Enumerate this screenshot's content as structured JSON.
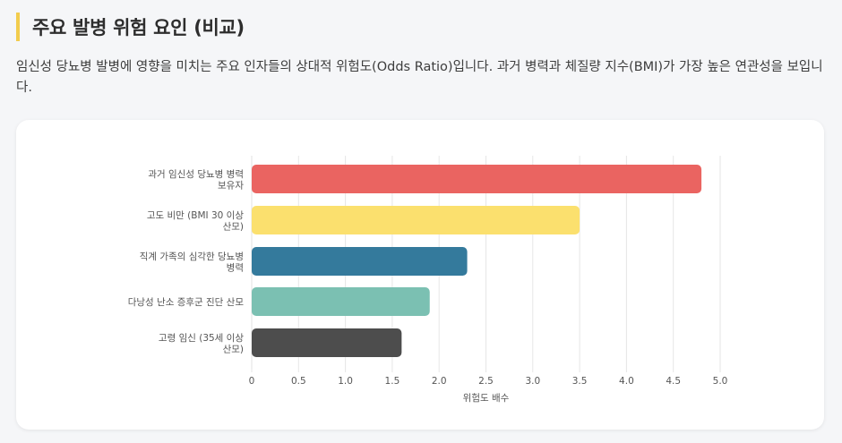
{
  "header": {
    "title": "주요 발병 위험 요인 (비교)"
  },
  "description": "임신성 당뇨병 발병에 영향을 미치는 주요 인자들의 상대적 위험도(Odds Ratio)입니다. 과거 병력과 체질량 지수(BMI)가 가장 높은 연관성을 보입니다.",
  "chart_data": {
    "type": "bar",
    "orientation": "horizontal",
    "categories": [
      [
        "과거 임신성 당뇨병 병력",
        "보유자"
      ],
      [
        "고도 비만 (BMI 30 이상",
        "산모)"
      ],
      [
        "직계 가족의 심각한 당뇨병",
        "병력"
      ],
      [
        "다낭성 난소 증후군 진단 산모"
      ],
      [
        "고령 임신 (35세 이상",
        "산모)"
      ]
    ],
    "values": [
      4.8,
      3.5,
      2.3,
      1.9,
      1.6
    ],
    "colors": [
      "#ea6461",
      "#fbe06e",
      "#347a9c",
      "#7bc0b2",
      "#4d4d4d"
    ],
    "xlim": [
      0,
      5.0
    ],
    "ticks": [
      "0",
      "0.5",
      "1.0",
      "1.5",
      "2.0",
      "2.5",
      "3.0",
      "3.5",
      "4.0",
      "4.5",
      "5.0"
    ],
    "xlabel": "위험도 배수",
    "grid": true,
    "legend": false
  }
}
